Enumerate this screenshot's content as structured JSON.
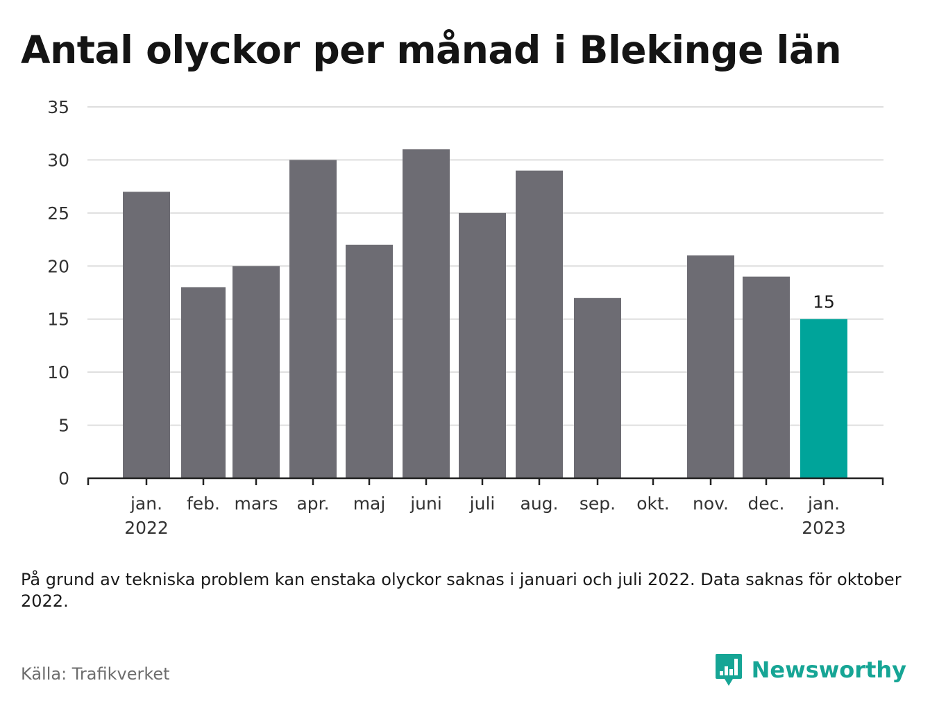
{
  "title": "Antal olyckor per månad i Blekinge län",
  "chart_data": {
    "type": "bar",
    "title": "Antal olyckor per månad i Blekinge län",
    "xlabel": "",
    "ylabel": "",
    "categories": [
      "jan. 2022",
      "feb.",
      "mars",
      "apr.",
      "maj",
      "juni",
      "juli",
      "aug.",
      "sep.",
      "okt.",
      "nov.",
      "dec.",
      "jan. 2023"
    ],
    "category_lines": [
      [
        "jan.",
        "2022"
      ],
      [
        "feb."
      ],
      [
        "mars"
      ],
      [
        "apr."
      ],
      [
        "maj"
      ],
      [
        "juni"
      ],
      [
        "juli"
      ],
      [
        "aug."
      ],
      [
        "sep."
      ],
      [
        "okt."
      ],
      [
        "nov."
      ],
      [
        "dec."
      ],
      [
        "jan.",
        "2023"
      ]
    ],
    "values": [
      27,
      18,
      20,
      30,
      22,
      31,
      25,
      29,
      17,
      null,
      21,
      19,
      15
    ],
    "ylim": [
      0,
      35
    ],
    "yticks": [
      0,
      5,
      10,
      15,
      20,
      25,
      30,
      35
    ],
    "grid": true,
    "highlight_index": 12,
    "data_labels": [
      {
        "index": 12,
        "text": "15"
      }
    ],
    "colors": {
      "bar": "#6d6c73",
      "highlight": "#00a49a",
      "grid": "#dedede",
      "axis": "#222222"
    }
  },
  "note": "På grund av tekniska problem kan enstaka olyckor saknas i januari och juli 2022. Data saknas för oktober 2022.",
  "source": "Källa: Trafikverket",
  "logo": {
    "text": "Newsworthy",
    "icon": "newsworthy-logo-icon",
    "color": "#16a595"
  }
}
